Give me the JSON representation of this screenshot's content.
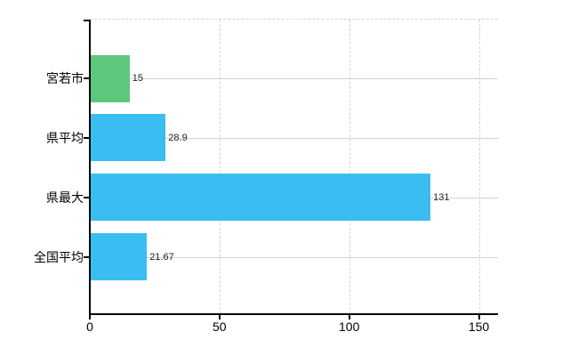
{
  "chart_data": {
    "type": "bar",
    "orientation": "horizontal",
    "title": "",
    "categories": [
      "宮若市",
      "県平均",
      "県最大",
      "全国平均"
    ],
    "values": [
      15,
      28.9,
      131,
      21.67
    ],
    "value_labels": [
      "15",
      "28.9",
      "131",
      "21.67"
    ],
    "bar_colors": [
      "#5dc87b",
      "#3abdf1",
      "#3abdf1",
      "#3abdf1"
    ],
    "x_ticks": [
      "0",
      "50",
      "100",
      "150"
    ],
    "x_tick_values": [
      0,
      50,
      100,
      150
    ],
    "xlim": [
      0,
      157.4
    ],
    "grid": true,
    "legend": "none"
  },
  "colors": {
    "background": "#ffffff",
    "bar_green": "#5dc87b",
    "bar_blue": "#3abdf1",
    "axis": "#000000",
    "gridline_horizontal": "#ccd6cc",
    "gridline_vertical": "#d4d4d4",
    "top_border": "#d4d4d4",
    "category_text": "#000000",
    "value_text": "#222222"
  }
}
